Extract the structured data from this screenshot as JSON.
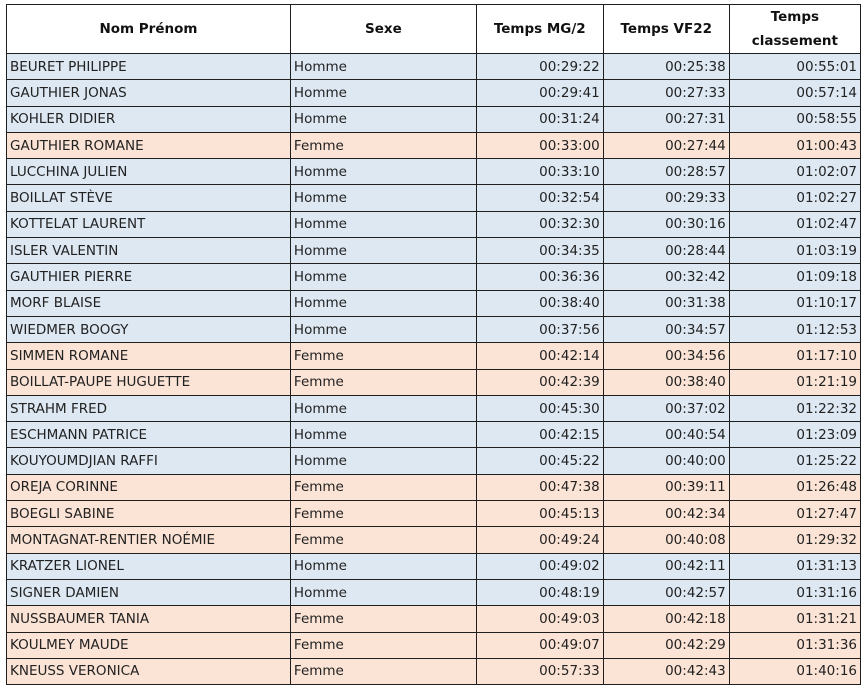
{
  "headers": [
    "Nom Prénom",
    "Sexe",
    "Temps MG/2",
    "Temps VF22",
    "Temps classement"
  ],
  "rows": [
    {
      "name": "BEURET PHILIPPE",
      "sexe": "Homme",
      "mg2": "00:29:22",
      "vf22": "00:25:38",
      "classement": "00:55:01"
    },
    {
      "name": "GAUTHIER JONAS",
      "sexe": "Homme",
      "mg2": "00:29:41",
      "vf22": "00:27:33",
      "classement": "00:57:14"
    },
    {
      "name": "KOHLER DIDIER",
      "sexe": "Homme",
      "mg2": "00:31:24",
      "vf22": "00:27:31",
      "classement": "00:58:55"
    },
    {
      "name": "GAUTHIER ROMANE",
      "sexe": "Femme",
      "mg2": "00:33:00",
      "vf22": "00:27:44",
      "classement": "01:00:43"
    },
    {
      "name": "LUCCHINA JULIEN",
      "sexe": "Homme",
      "mg2": "00:33:10",
      "vf22": "00:28:57",
      "classement": "01:02:07"
    },
    {
      "name": "BOILLAT STÈVE",
      "sexe": "Homme",
      "mg2": "00:32:54",
      "vf22": "00:29:33",
      "classement": "01:02:27"
    },
    {
      "name": "KOTTELAT LAURENT",
      "sexe": "Homme",
      "mg2": "00:32:30",
      "vf22": "00:30:16",
      "classement": "01:02:47"
    },
    {
      "name": "ISLER VALENTIN",
      "sexe": "Homme",
      "mg2": "00:34:35",
      "vf22": "00:28:44",
      "classement": "01:03:19"
    },
    {
      "name": "GAUTHIER PIERRE",
      "sexe": "Homme",
      "mg2": "00:36:36",
      "vf22": "00:32:42",
      "classement": "01:09:18"
    },
    {
      "name": "MORF BLAISE",
      "sexe": "Homme",
      "mg2": "00:38:40",
      "vf22": "00:31:38",
      "classement": "01:10:17"
    },
    {
      "name": "WIEDMER BOOGY",
      "sexe": "Homme",
      "mg2": "00:37:56",
      "vf22": "00:34:57",
      "classement": "01:12:53"
    },
    {
      "name": "SIMMEN ROMANE",
      "sexe": "Femme",
      "mg2": "00:42:14",
      "vf22": "00:34:56",
      "classement": "01:17:10"
    },
    {
      "name": "BOILLAT-PAUPE HUGUETTE",
      "sexe": "Femme",
      "mg2": "00:42:39",
      "vf22": "00:38:40",
      "classement": "01:21:19"
    },
    {
      "name": "STRAHM FRED",
      "sexe": "Homme",
      "mg2": "00:45:30",
      "vf22": "00:37:02",
      "classement": "01:22:32"
    },
    {
      "name": "ESCHMANN PATRICE",
      "sexe": "Homme",
      "mg2": "00:42:15",
      "vf22": "00:40:54",
      "classement": "01:23:09"
    },
    {
      "name": "KOUYOUMDJIAN RAFFI",
      "sexe": "Homme",
      "mg2": "00:45:22",
      "vf22": "00:40:00",
      "classement": "01:25:22"
    },
    {
      "name": "OREJA CORINNE",
      "sexe": "Femme",
      "mg2": "00:47:38",
      "vf22": "00:39:11",
      "classement": "01:26:48"
    },
    {
      "name": "BOEGLI SABINE",
      "sexe": "Femme",
      "mg2": "00:45:13",
      "vf22": "00:42:34",
      "classement": "01:27:47"
    },
    {
      "name": "MONTAGNAT-RENTIER NOÉMIE",
      "sexe": "Femme",
      "mg2": "00:49:24",
      "vf22": "00:40:08",
      "classement": "01:29:32"
    },
    {
      "name": "KRATZER LIONEL",
      "sexe": "Homme",
      "mg2": "00:49:02",
      "vf22": "00:42:11",
      "classement": "01:31:13"
    },
    {
      "name": "SIGNER DAMIEN",
      "sexe": "Homme",
      "mg2": "00:48:19",
      "vf22": "00:42:57",
      "classement": "01:31:16"
    },
    {
      "name": "NUSSBAUMER TANIA",
      "sexe": "Femme",
      "mg2": "00:49:03",
      "vf22": "00:42:18",
      "classement": "01:31:21"
    },
    {
      "name": "KOULMEY MAUDE",
      "sexe": "Femme",
      "mg2": "00:49:07",
      "vf22": "00:42:29",
      "classement": "01:31:36"
    },
    {
      "name": "KNEUSS VERONICA",
      "sexe": "Femme",
      "mg2": "00:57:33",
      "vf22": "00:42:43",
      "classement": "01:40:16"
    }
  ],
  "colors": {
    "homme_row": "#dde8f3",
    "femme_row": "#fbe3d5",
    "border": "#1f1f1f"
  }
}
